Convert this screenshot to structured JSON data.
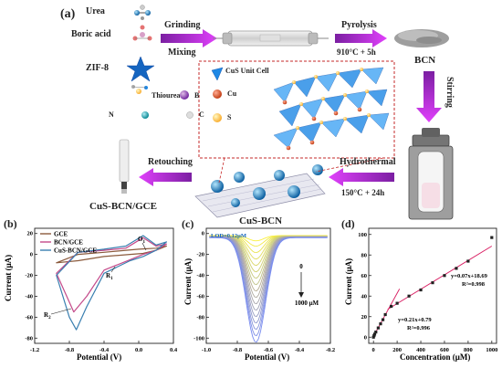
{
  "panel_a": {
    "label": "(a)",
    "reagents": {
      "urea": "Urea",
      "boric_acid": "Boric acid",
      "zif8": "ZIF-8",
      "thiourea": "Thiourea",
      "b": "B",
      "n": "N",
      "c": "C"
    },
    "steps": {
      "grinding": "Grinding",
      "mixing": "Mixing",
      "pyrolysis": "Pyrolysis",
      "pyrolysis_cond": "910°C + 5h",
      "bcn": "BCN",
      "stirring": "Stirring",
      "hydrothermal": "Hydrothermal",
      "hydro_cond": "150°C + 24h",
      "cus_bcn": "CuS-BCN",
      "retouching": "Retouching",
      "electrode": "CuS-BCN/GCE"
    },
    "inset_legend": {
      "unit_cell": "CuS Unit Cell",
      "cu": "Cu",
      "s": "S"
    }
  },
  "panel_b": {
    "label": "(b)",
    "legend": [
      "GCE",
      "BCN/GCE",
      "CuS-BCN/GCE"
    ],
    "annotations": {
      "o1": "O",
      "o1_sub": "1",
      "r1": "R",
      "r1_sub": "1",
      "r2": "R",
      "r2_sub": "2"
    },
    "ylabel": "Current (μA)",
    "xlabel": "Potential (V)",
    "xticks": [
      "-1.2",
      "-0.8",
      "-0.4",
      "0.0",
      "0.4"
    ],
    "yticks": [
      "20",
      "0",
      "-20",
      "-40",
      "-60",
      "-80"
    ],
    "colors": {
      "gce": "#8b5a3c",
      "bcn": "#c44a8a",
      "cus": "#3a7fb0"
    }
  },
  "panel_c": {
    "label": "(c)",
    "lod": "LOD=0.12μM",
    "ylabel": "Current (μA)",
    "xlabel": "Potential (V)",
    "xticks": [
      "-1.0",
      "-0.8",
      "-0.6",
      "-0.4",
      "-0.2"
    ],
    "yticks": [
      "0",
      "-20",
      "-40",
      "-60",
      "-80",
      "-100"
    ],
    "conc_start": "0",
    "conc_end": "1000 μM"
  },
  "panel_d": {
    "label": "(d)",
    "ylabel": "Current (μA)",
    "xlabel": "Concentration (μM)",
    "xticks": [
      "0",
      "200",
      "400",
      "600",
      "800",
      "1000"
    ],
    "yticks": [
      "0",
      "20",
      "40",
      "60",
      "80",
      "100"
    ],
    "eq_high": "y=0.07x+18.69",
    "r2_high": "R²=0.998",
    "eq_low": "y=0.21x+0.79",
    "r2_low": "R²=0.996"
  },
  "chart_data": [
    {
      "type": "line",
      "panel": "b",
      "xlabel": "Potential (V)",
      "ylabel": "Current (μA)",
      "xlim": [
        -1.2,
        0.4
      ],
      "ylim": [
        -85,
        25
      ],
      "series": [
        {
          "name": "GCE",
          "x": [
            -0.95,
            -0.7,
            -0.4,
            -0.1,
            0.05,
            0.2,
            0.32,
            0.2,
            0.0,
            -0.15,
            -0.4,
            -0.7,
            -0.95
          ],
          "y": [
            -8,
            -6,
            -2,
            0,
            1,
            4,
            8,
            6,
            5,
            4,
            2,
            0,
            -8
          ]
        },
        {
          "name": "BCN/GCE",
          "x": [
            -0.95,
            -0.75,
            -0.6,
            -0.4,
            -0.1,
            0.05,
            0.2,
            0.32,
            0.2,
            0.05,
            -0.15,
            -0.4,
            -0.7,
            -0.95
          ],
          "y": [
            -18,
            -55,
            -40,
            -15,
            -5,
            0,
            4,
            10,
            8,
            16,
            6,
            4,
            2,
            -18
          ]
        },
        {
          "name": "CuS-BCN/GCE",
          "x": [
            -0.95,
            -0.8,
            -0.72,
            -0.6,
            -0.4,
            -0.1,
            0.05,
            0.2,
            0.32,
            0.2,
            0.05,
            -0.15,
            -0.4,
            -0.7,
            -0.95
          ],
          "y": [
            -20,
            -60,
            -72,
            -50,
            -18,
            -6,
            -2,
            4,
            12,
            9,
            18,
            8,
            5,
            2,
            -20
          ]
        }
      ]
    },
    {
      "type": "line",
      "panel": "c",
      "xlabel": "Potential (V)",
      "ylabel": "Current (μA)",
      "xlim": [
        -1.0,
        -0.2
      ],
      "ylim": [
        -105,
        5
      ],
      "peak_potential": -0.68,
      "peak_currents": [
        -5,
        -10,
        -16,
        -22,
        -28,
        -34,
        -40,
        -46,
        -52,
        -58,
        -64,
        -70,
        -76,
        -82,
        -88,
        -94,
        -100
      ],
      "concentration_range": [
        "0",
        "1000 μM"
      ]
    },
    {
      "type": "scatter",
      "panel": "d",
      "xlabel": "Concentration (μM)",
      "ylabel": "Current (μA)",
      "xlim": [
        0,
        1000
      ],
      "ylim": [
        0,
        100
      ],
      "x": [
        0,
        5,
        10,
        20,
        40,
        60,
        80,
        100,
        150,
        200,
        300,
        400,
        500,
        600,
        700,
        800,
        1000
      ],
      "y": [
        0,
        1.5,
        3,
        5,
        9,
        13,
        17,
        22,
        30,
        33,
        40,
        46,
        53,
        60,
        67,
        74,
        97
      ],
      "fits": [
        {
          "equation": "y=0.07x+18.69",
          "r2": "R²=0.998",
          "slope": 0.07,
          "intercept": 18.69,
          "x_range": [
            200,
            1000
          ]
        },
        {
          "equation": "y=0.21x+0.79",
          "r2": "R²=0.996",
          "slope": 0.21,
          "intercept": 0.79,
          "x_range": [
            0,
            200
          ]
        }
      ]
    }
  ]
}
